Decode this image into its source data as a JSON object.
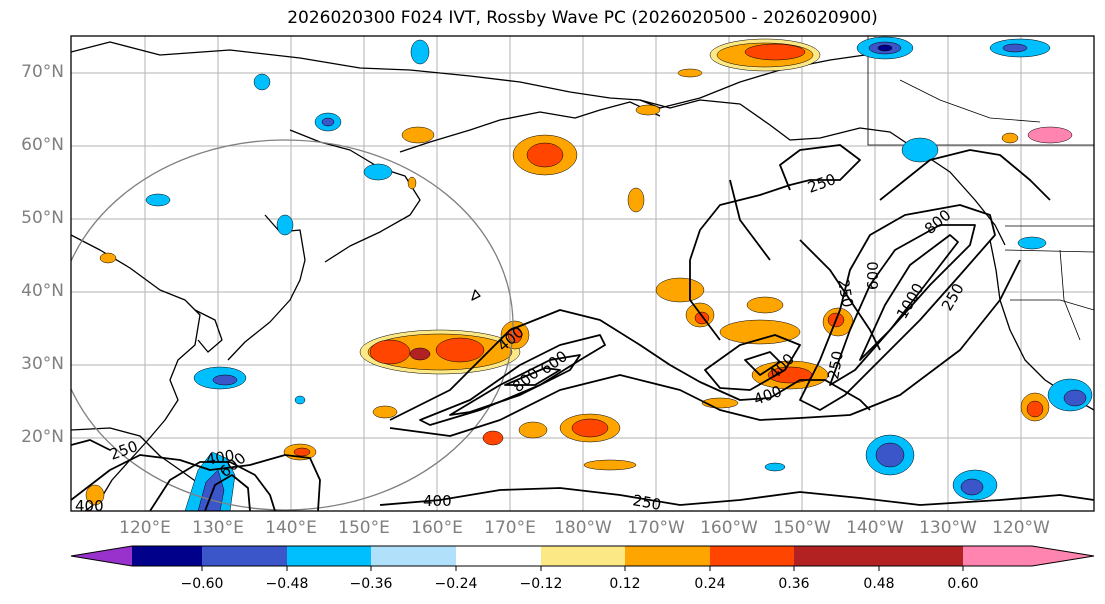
{
  "title": "2026020300 F024 IVT, Rossby Wave PC (2026020500 - 2026020900)",
  "latitude_labels": [
    "70°N",
    "60°N",
    "50°N",
    "40°N",
    "30°N",
    "20°N"
  ],
  "longitude_labels": [
    "120°E",
    "130°E",
    "140°E",
    "150°E",
    "160°E",
    "170°E",
    "180°W",
    "170°W",
    "160°W",
    "150°W",
    "140°W",
    "130°W",
    "120°W"
  ],
  "contour_labels": [
    "250",
    "400",
    "600",
    "400",
    "250",
    "400",
    "800",
    "600",
    "400",
    "250",
    "400",
    "250",
    "250",
    "600",
    "800",
    "1000",
    "250",
    "400",
    "250"
  ],
  "colorbar": {
    "colors": [
      "#9932cc",
      "#00008b",
      "#3a56c8",
      "#00bfff",
      "#b0e0fa",
      "#ffffff",
      "#fde886",
      "#ffa500",
      "#ff4500",
      "#b22222",
      "#ff85b0"
    ],
    "tick_labels": [
      "−0.60",
      "−0.48",
      "−0.36",
      "−0.24",
      "−0.12",
      "0.12",
      "0.24",
      "0.36",
      "0.48",
      "0.60"
    ]
  }
}
